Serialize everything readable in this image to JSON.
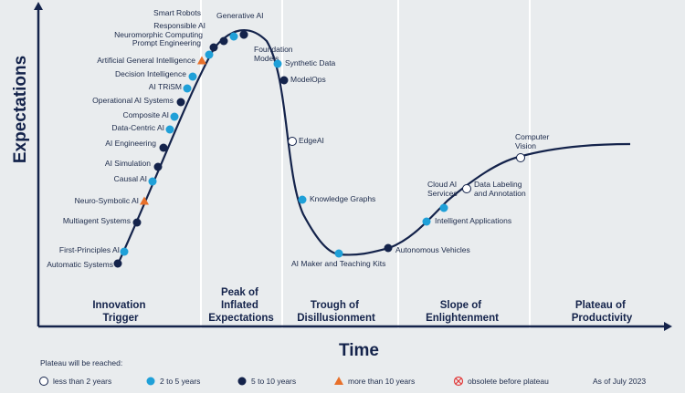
{
  "chart_data": {
    "type": "scatter",
    "title": "",
    "xlabel": "Time",
    "ylabel": "Expectations",
    "phases": [
      {
        "line1": "Innovation",
        "line2": "Trigger"
      },
      {
        "line1": "Peak of",
        "line2": "Inflated",
        "line3": "Expectations"
      },
      {
        "line1": "Trough of",
        "line2": "Disillusionment"
      },
      {
        "line1": "Slope of",
        "line2": "Enlightenment"
      },
      {
        "line1": "Plateau of",
        "line2": "Productivity"
      }
    ],
    "legend": {
      "title": "Plateau will be reached:",
      "items": [
        {
          "key": "lt2",
          "label": "less than 2 years"
        },
        {
          "key": "2to5",
          "label": "2 to 5 years"
        },
        {
          "key": "5to10",
          "label": "5 to 10 years"
        },
        {
          "key": "gt10",
          "label": "more than 10 years"
        },
        {
          "key": "obsolete",
          "label": "obsolete before plateau"
        }
      ],
      "date": "As of July 2023"
    },
    "colors": {
      "curve": "#14234b",
      "lt2": "#ffffff",
      "2to5": "#1fa0d8",
      "5to10": "#14234b",
      "gt10": "#e8702a",
      "obsolete": "#e23b3b",
      "divider": "#ffffff"
    },
    "technologies": [
      {
        "name": "Automatic Systems",
        "cat": "5to10"
      },
      {
        "name": "First-Principles AI",
        "cat": "2to5"
      },
      {
        "name": "Multiagent Systems",
        "cat": "5to10"
      },
      {
        "name": "Neuro-Symbolic AI",
        "cat": "gt10"
      },
      {
        "name": "Causal AI",
        "cat": "2to5"
      },
      {
        "name": "AI Simulation",
        "cat": "5to10"
      },
      {
        "name": "AI Engineering",
        "cat": "5to10"
      },
      {
        "name": "Data-Centric AI",
        "cat": "2to5"
      },
      {
        "name": "Composite AI",
        "cat": "2to5"
      },
      {
        "name": "Operational AI Systems",
        "cat": "5to10"
      },
      {
        "name": "AI TRiSM",
        "cat": "2to5"
      },
      {
        "name": "Decision Intelligence",
        "cat": "2to5"
      },
      {
        "name": "Artificial General Intelligence",
        "cat": "gt10"
      },
      {
        "name": "Prompt Engineering",
        "cat": "2to5"
      },
      {
        "name": "Neuromorphic Computing",
        "cat": "5to10"
      },
      {
        "name": "Responsible AI",
        "cat": "5to10"
      },
      {
        "name": "Smart Robots",
        "cat": "2to5"
      },
      {
        "name": "Generative AI",
        "cat": "5to10"
      },
      {
        "name": "Foundation Models",
        "cat": "5to10",
        "line1": "Foundation",
        "line2": "Models"
      },
      {
        "name": "Synthetic Data",
        "cat": "2to5"
      },
      {
        "name": "ModelOps",
        "cat": "5to10"
      },
      {
        "name": "EdgeAI",
        "cat": "lt2"
      },
      {
        "name": "Knowledge Graphs",
        "cat": "2to5"
      },
      {
        "name": "AI Maker and Teaching Kits",
        "cat": "2to5"
      },
      {
        "name": "Autonomous Vehicles",
        "cat": "5to10"
      },
      {
        "name": "Intelligent Applications",
        "cat": "2to5"
      },
      {
        "name": "Cloud AI Services",
        "cat": "2to5",
        "line1": "Cloud AI",
        "line2": "Services"
      },
      {
        "name": "Data Labeling and Annotation",
        "cat": "lt2",
        "line1": "Data Labeling",
        "line2": "and Annotation"
      },
      {
        "name": "Computer Vision",
        "cat": "lt2",
        "line1": "Computer",
        "line2": "Vision"
      }
    ]
  }
}
